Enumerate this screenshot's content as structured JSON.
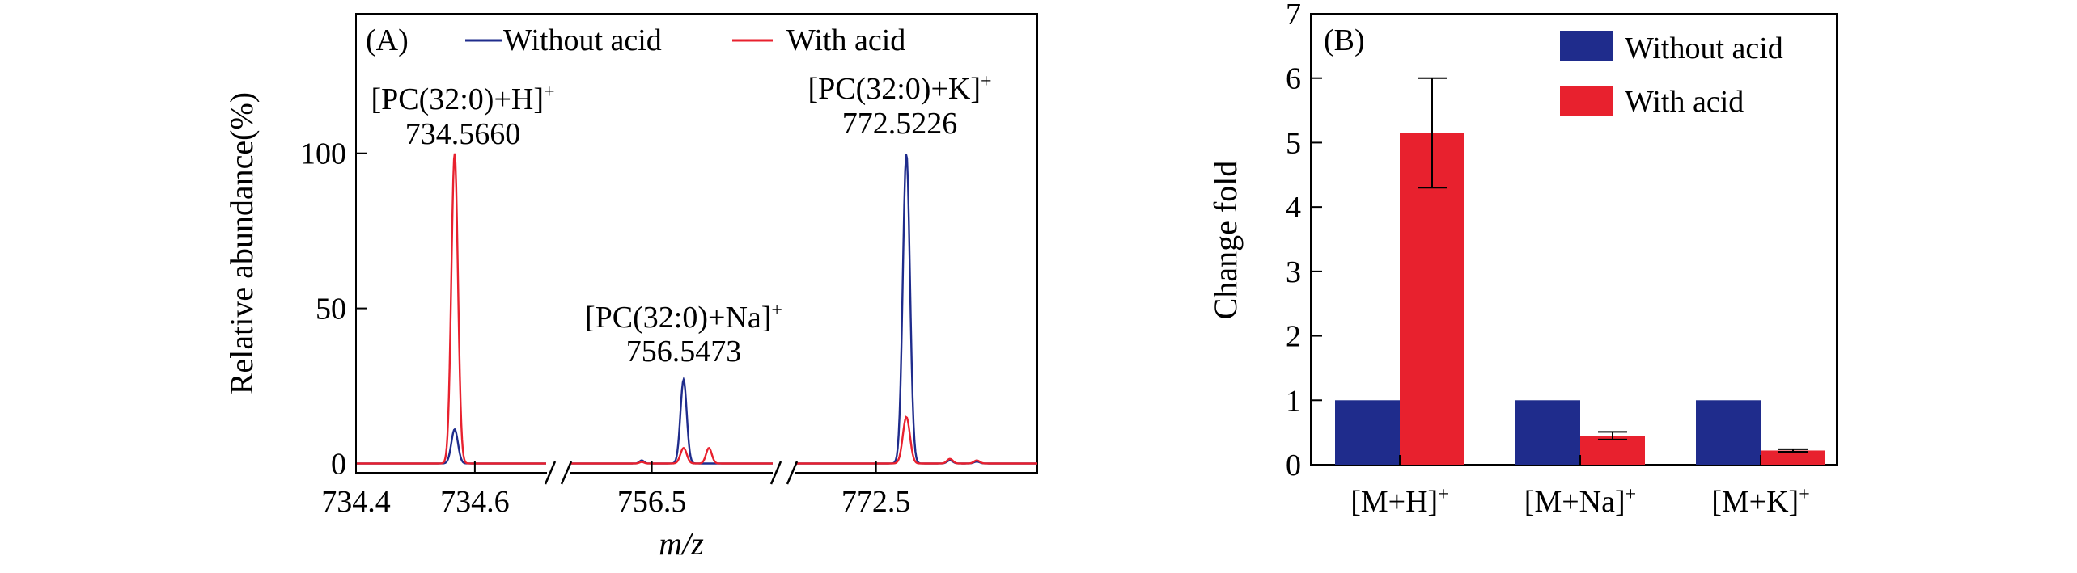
{
  "chart_data": [
    {
      "type": "line",
      "panel_label": "(A)",
      "xlabel": "m/z",
      "ylabel": "Relative abundance(%)",
      "ylim": [
        -3,
        145
      ],
      "yticks": [
        0,
        50,
        100
      ],
      "axis_breaks": "broken x-axis, three segments",
      "legend": {
        "placement": "top",
        "entries": [
          "Without acid",
          "With acid"
        ]
      },
      "colors": {
        "without_acid": "#1f2c8c",
        "with_acid": "#e8212e"
      },
      "segments": [
        {
          "xlim": [
            734.4,
            734.72
          ],
          "xticks": [
            "734.4",
            "734.6"
          ],
          "xtick_values": [
            734.4,
            734.6
          ],
          "peaks": [
            {
              "x": 734.566,
              "without_acid": 11,
              "with_acid": 100,
              "width": 0.013
            }
          ]
        },
        {
          "xlim": [
            756.38,
            756.68
          ],
          "xticks": [
            "756.5"
          ],
          "xtick_values": [
            756.5
          ],
          "peaks": [
            {
              "x": 756.5473,
              "without_acid": 27,
              "with_acid": 5,
              "width": 0.011
            },
            {
              "x": 756.585,
              "without_acid": 0,
              "with_acid": 5,
              "width": 0.01
            },
            {
              "x": 756.485,
              "without_acid": 1,
              "with_acid": 0.5,
              "width": 0.008
            }
          ]
        },
        {
          "xlim": [
            772.44,
            772.62
          ],
          "xticks": [
            "772.5"
          ],
          "xtick_values": [
            772.5
          ],
          "peaks": [
            {
              "x": 772.5226,
              "without_acid": 100,
              "with_acid": 15,
              "width": 0.0062
            },
            {
              "x": 772.555,
              "without_acid": 1,
              "with_acid": 1.5,
              "width": 0.005
            },
            {
              "x": 772.575,
              "without_acid": 0.6,
              "with_acid": 1,
              "width": 0.005
            }
          ]
        }
      ],
      "annotations": [
        {
          "name": "[PC(32:0)+H]",
          "superscript": "+",
          "mz": "734.5660"
        },
        {
          "name": "[PC(32:0)+Na]",
          "superscript": "+",
          "mz": "756.5473"
        },
        {
          "name": "[PC(32:0)+K]",
          "superscript": "+",
          "mz": "772.5226"
        }
      ]
    },
    {
      "type": "bar",
      "panel_label": "(B)",
      "ylabel": "Change fold",
      "xlabel": "",
      "ylim": [
        0,
        7
      ],
      "yticks": [
        "0",
        "1",
        "2",
        "3",
        "4",
        "5",
        "6",
        "7"
      ],
      "categories": [
        {
          "label": "[M+H]",
          "superscript": "+"
        },
        {
          "label": "[M+Na]",
          "superscript": "+"
        },
        {
          "label": "[M+K]",
          "superscript": "+"
        }
      ],
      "legend": {
        "placement": "top-right"
      },
      "series": [
        {
          "name": "Without acid",
          "color": "#1f2c8c",
          "values": [
            1,
            1,
            1
          ],
          "errors": [
            0,
            0,
            0
          ]
        },
        {
          "name": "With acid",
          "color": "#e8212e",
          "values": [
            5.15,
            0.45,
            0.22
          ],
          "errors": [
            0.85,
            0.06,
            0.02
          ]
        }
      ]
    }
  ]
}
